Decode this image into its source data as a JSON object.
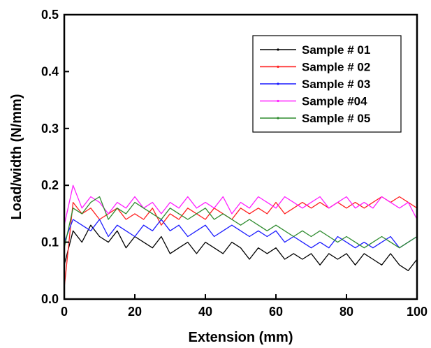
{
  "chart_data": {
    "type": "line",
    "title": "",
    "xlabel": "Extension (mm)",
    "ylabel": "Load/width (N/mm)",
    "xlim": [
      0,
      100
    ],
    "ylim": [
      0.0,
      0.5
    ],
    "xticks": [
      0,
      20,
      40,
      60,
      80,
      100
    ],
    "xtick_labels": [
      "0",
      "20",
      "40",
      "60",
      "80",
      "100"
    ],
    "yticks": [
      0.0,
      0.1,
      0.2,
      0.3,
      0.4,
      0.5
    ],
    "ytick_labels": [
      "0.0",
      "0.1",
      "0.2",
      "0.3",
      "0.4",
      "0.5"
    ],
    "grid": false,
    "legend_position": "top-right",
    "x": [
      0,
      2.5,
      5,
      7.5,
      10,
      12.5,
      15,
      17.5,
      20,
      22.5,
      25,
      27.5,
      30,
      32.5,
      35,
      37.5,
      40,
      42.5,
      45,
      47.5,
      50,
      52.5,
      55,
      57.5,
      60,
      62.5,
      65,
      67.5,
      70,
      72.5,
      75,
      77.5,
      80,
      82.5,
      85,
      87.5,
      90,
      92.5,
      95,
      97.5,
      100
    ],
    "series": [
      {
        "name": "Sample # 01",
        "color": "#000000",
        "values": [
          0.06,
          0.12,
          0.1,
          0.13,
          0.11,
          0.1,
          0.12,
          0.09,
          0.11,
          0.1,
          0.09,
          0.11,
          0.08,
          0.09,
          0.1,
          0.08,
          0.1,
          0.09,
          0.08,
          0.1,
          0.09,
          0.07,
          0.09,
          0.08,
          0.09,
          0.07,
          0.08,
          0.07,
          0.08,
          0.06,
          0.08,
          0.07,
          0.08,
          0.06,
          0.08,
          0.07,
          0.06,
          0.08,
          0.06,
          0.05,
          0.07
        ]
      },
      {
        "name": "Sample # 02",
        "color": "#ff2020",
        "values": [
          0.02,
          0.17,
          0.15,
          0.16,
          0.14,
          0.15,
          0.16,
          0.14,
          0.15,
          0.14,
          0.16,
          0.13,
          0.15,
          0.14,
          0.16,
          0.15,
          0.14,
          0.16,
          0.15,
          0.14,
          0.16,
          0.15,
          0.16,
          0.15,
          0.17,
          0.15,
          0.16,
          0.17,
          0.16,
          0.17,
          0.16,
          0.17,
          0.16,
          0.17,
          0.16,
          0.17,
          0.18,
          0.17,
          0.18,
          0.17,
          0.16
        ]
      },
      {
        "name": "Sample # 03",
        "color": "#1c1cff",
        "values": [
          0.1,
          0.14,
          0.13,
          0.12,
          0.14,
          0.11,
          0.13,
          0.12,
          0.11,
          0.13,
          0.12,
          0.14,
          0.12,
          0.13,
          0.11,
          0.12,
          0.13,
          0.11,
          0.12,
          0.13,
          0.12,
          0.11,
          0.12,
          0.11,
          0.12,
          0.1,
          0.11,
          0.1,
          0.09,
          0.1,
          0.09,
          0.11,
          0.1,
          0.09,
          0.1,
          0.09,
          0.1,
          0.11,
          0.09,
          0.1,
          0.11
        ]
      },
      {
        "name": "Sample #04",
        "color": "#ff20ff",
        "values": [
          0.13,
          0.2,
          0.16,
          0.18,
          0.17,
          0.15,
          0.17,
          0.16,
          0.18,
          0.16,
          0.17,
          0.15,
          0.17,
          0.16,
          0.18,
          0.16,
          0.17,
          0.16,
          0.18,
          0.15,
          0.17,
          0.16,
          0.18,
          0.17,
          0.16,
          0.18,
          0.17,
          0.16,
          0.17,
          0.18,
          0.16,
          0.17,
          0.18,
          0.16,
          0.17,
          0.16,
          0.18,
          0.17,
          0.16,
          0.17,
          0.14
        ]
      },
      {
        "name": "Sample # 05",
        "color": "#2e8b2e",
        "values": [
          0.09,
          0.16,
          0.15,
          0.17,
          0.18,
          0.14,
          0.16,
          0.15,
          0.17,
          0.16,
          0.15,
          0.14,
          0.16,
          0.15,
          0.14,
          0.15,
          0.16,
          0.14,
          0.15,
          0.14,
          0.13,
          0.14,
          0.13,
          0.12,
          0.13,
          0.12,
          0.11,
          0.12,
          0.11,
          0.12,
          0.11,
          0.1,
          0.11,
          0.1,
          0.09,
          0.1,
          0.11,
          0.1,
          0.09,
          0.1,
          0.11
        ]
      }
    ]
  }
}
